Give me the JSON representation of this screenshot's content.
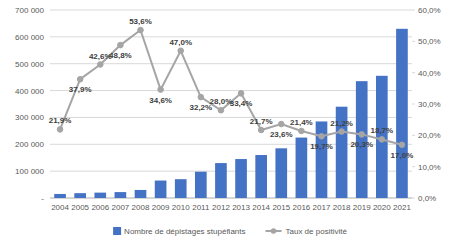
{
  "chart_data": {
    "type": "bar",
    "categories": [
      "2004",
      "2005",
      "2006",
      "2007",
      "2008",
      "2009",
      "2010",
      "2011",
      "2012",
      "2013",
      "2014",
      "2015",
      "2016",
      "2017",
      "2018",
      "2019",
      "2020",
      "2021"
    ],
    "ylim": [
      0,
      700000
    ],
    "yticks": [
      {
        "value": 0,
        "label": "-"
      },
      {
        "value": 100000,
        "label": "100 000"
      },
      {
        "value": 200000,
        "label": "200 000"
      },
      {
        "value": 300000,
        "label": "300 000"
      },
      {
        "value": 400000,
        "label": "400 000"
      },
      {
        "value": 500000,
        "label": "500 000"
      },
      {
        "value": 600000,
        "label": "600 000"
      },
      {
        "value": 700000,
        "label": "700 000"
      }
    ],
    "y2lim": [
      0,
      60
    ],
    "y2ticks": [
      {
        "value": 0,
        "label": "0,0%"
      },
      {
        "value": 10,
        "label": "10,0%"
      },
      {
        "value": 20,
        "label": "20,0%"
      },
      {
        "value": 30,
        "label": "30,0%"
      },
      {
        "value": 40,
        "label": "40,0%"
      },
      {
        "value": 50,
        "label": "50,0%"
      },
      {
        "value": 60,
        "label": "60,0%"
      }
    ],
    "grid": true,
    "legend": "bottom",
    "series": [
      {
        "name": "Nombre de dépistages stupéfiants",
        "type": "bar",
        "color": "#4472c4",
        "values": [
          15000,
          18000,
          20000,
          22000,
          30000,
          65000,
          70000,
          98000,
          130000,
          145000,
          160000,
          185000,
          225000,
          285000,
          340000,
          435000,
          455000,
          630000
        ]
      },
      {
        "name": "Taux de positivité",
        "type": "line",
        "axis": "y2",
        "color": "#a5a5a5",
        "marker": "circle",
        "data_labels": true,
        "values": [
          21.9,
          37.9,
          42.6,
          48.8,
          53.6,
          34.6,
          47.0,
          32.2,
          28.0,
          33.4,
          21.7,
          23.6,
          21.4,
          19.7,
          21.2,
          20.3,
          18.7,
          17.0
        ],
        "value_labels": [
          "21,9%",
          "37,9%",
          "42,6%",
          "48,8%",
          "53,6%",
          "34,6%",
          "47,0%",
          "32,2%",
          "28,0%",
          "33,4%",
          "21,7%",
          "23,6%",
          "21,4%",
          "19,7%",
          "21,2%",
          "20,3%",
          "18,7%",
          "17,0%"
        ]
      }
    ]
  }
}
